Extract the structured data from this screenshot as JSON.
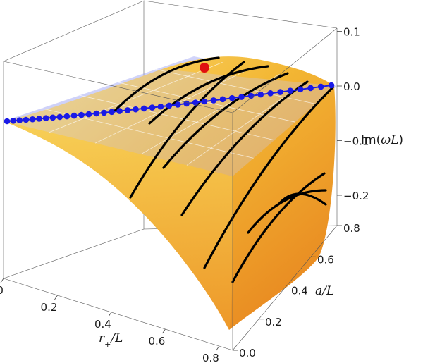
{
  "chart_data": {
    "type": "surface3d",
    "title": "",
    "x_axis": {
      "label_main": "r",
      "label_sub": "+",
      "label_rest": "/L",
      "ticks": [
        "0.0",
        "0.2",
        "0.4",
        "0.6",
        "0.8"
      ],
      "tick_values": [
        0.0,
        0.2,
        0.4,
        0.6,
        0.8
      ],
      "range": [
        0,
        0.85
      ]
    },
    "y_axis": {
      "label_main": "a",
      "label_rest": "/L",
      "ticks": [
        "0.0",
        "0.2",
        "0.4",
        "0.6",
        "0.8"
      ],
      "tick_values": [
        0.0,
        0.2,
        0.4,
        0.6,
        0.8
      ],
      "range": [
        0,
        0.8
      ]
    },
    "z_axis": {
      "label_pre": "Im(",
      "label_main": "ωL",
      "label_post": ")",
      "ticks": [
        "0.1",
        "0.0",
        "−0.1",
        "−0.2"
      ],
      "tick_values": [
        0.1,
        0.0,
        -0.1,
        -0.2
      ],
      "range": [
        -0.25,
        0.1
      ]
    },
    "surface": {
      "description": "Im(omega L) as function of r+/L and a/L, peaks near small r+ and decays to large negative values at large r+",
      "color": "#f2b52e",
      "shade": "#e07a1c"
    },
    "zero_plane": {
      "z": 0.0,
      "color": "#9aa0f5"
    },
    "black_curves": {
      "count": 9,
      "color": "#000000"
    },
    "blue_curve": {
      "color": "#1a1ae6",
      "points": 40,
      "description": "Im(omega L)=0 contour, onset of instability"
    },
    "red_point": {
      "color": "#e01010",
      "r_plus": 0.0,
      "a": 0.8,
      "z": 0.0
    }
  }
}
